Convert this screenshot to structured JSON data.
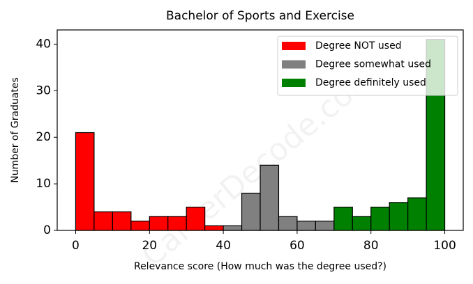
{
  "chart_data": {
    "type": "histogram",
    "title": "Bachelor of Sports and Exercise",
    "x_label": "Relevance score (How much was the degree used?)",
    "y_label": "Number of Graduates",
    "watermark": "CareerDecode.com",
    "series": [
      {
        "name": "Degree NOT used",
        "color": "#ff0000",
        "bins": [
          0,
          5,
          10,
          15,
          20,
          25,
          30,
          35,
          40
        ],
        "values": [
          21,
          4,
          4,
          2,
          3,
          3,
          5,
          1
        ]
      },
      {
        "name": "Degree somewhat used",
        "color": "#808080",
        "bins": [
          40,
          45,
          50,
          55,
          60,
          65,
          70
        ],
        "values": [
          1,
          8,
          14,
          3,
          2,
          2
        ]
      },
      {
        "name": "Degree definitely used",
        "color": "#008000",
        "bins": [
          70,
          75,
          80,
          85,
          90,
          95,
          100
        ],
        "values": [
          5,
          3,
          5,
          6,
          7,
          41
        ]
      }
    ],
    "xlim": [
      -5,
      105
    ],
    "xticks": [
      0,
      20,
      40,
      60,
      80,
      100
    ],
    "ylim": [
      0,
      43.05
    ],
    "yticks": [
      0,
      10,
      20,
      30,
      40
    ],
    "legend": "upper right"
  }
}
